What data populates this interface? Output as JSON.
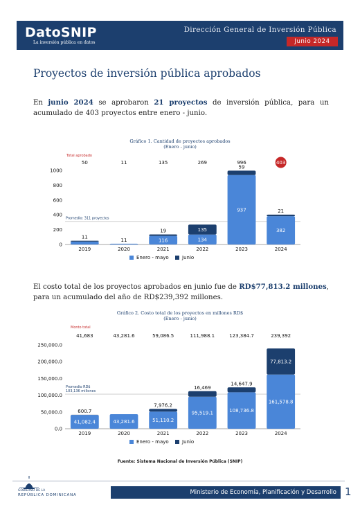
{
  "header": {
    "brand": "DatoSNIP",
    "tagline": "La inversión pública en datos",
    "org": "Dirección General de Inversión Pública",
    "month": "Junio 2024"
  },
  "title": "Proyectos de inversión pública aprobados",
  "para1": {
    "p1": "En ",
    "h1": "junio 2024",
    "p2": " se aprobaron ",
    "h2": "21 proyectos",
    "p3": " de inversión pública, para un acumulado de 403 proyectos entre enero - junio."
  },
  "para2": {
    "p1": "El costo total de los proyectos aprobados en junio fue de ",
    "h1": "RD$77,813.2 millones",
    "p2": ", para un acumulado del año de RD$239,392 millones."
  },
  "chart_data": [
    {
      "type": "bar",
      "title": "Gráfico 1. Cantidad de proyectos aprobados",
      "subtitle": "(Enero - junio)",
      "total_label": "Total aprobado",
      "categories": [
        "2019",
        "2020",
        "2021",
        "2022",
        "2023",
        "2024"
      ],
      "totals": [
        "50",
        "11",
        "135",
        "269",
        "996",
        "403"
      ],
      "series": [
        {
          "name": "Enero - mayo",
          "values": [
            39,
            11,
            116,
            134,
            937,
            382
          ],
          "labels": [
            "",
            "11",
            "116",
            "134",
            "937",
            "382"
          ],
          "color": "#4a86d8"
        },
        {
          "name": "Junio",
          "values": [
            11,
            0,
            19,
            135,
            59,
            21
          ],
          "labels": [
            "11",
            "",
            "19",
            "135",
            "59",
            "21"
          ],
          "color": "#1c3f6e"
        }
      ],
      "yticks": [
        "0",
        "200",
        "400",
        "600",
        "800",
        "1000"
      ],
      "ylim": [
        0,
        1000
      ],
      "average": 311,
      "average_label": "Promedio: 311 proyectos",
      "stacked": true,
      "legend": "bottom"
    },
    {
      "type": "bar",
      "title": "Gráfico 2. Costo total de los proyectos en millones RD$",
      "subtitle": "(Enero - junio)",
      "total_label": "Monto total",
      "categories": [
        "2019",
        "2020",
        "2021",
        "2022",
        "2023",
        "2024"
      ],
      "totals": [
        "41,683",
        "43,281.6",
        "59,086.5",
        "111,988.1",
        "123,384.7",
        "239,392"
      ],
      "series": [
        {
          "name": "Enero - mayo",
          "values": [
            41082.4,
            43281.6,
            51110.2,
            95519.1,
            108736.8,
            161578.8
          ],
          "labels": [
            "41,082.4",
            "43,281.6",
            "51,110.2",
            "95,519.1",
            "108,736.8",
            "161,578.8"
          ],
          "color": "#4a86d8"
        },
        {
          "name": "Junio",
          "values": [
            600.7,
            0,
            7976.2,
            16469,
            14647.9,
            77813.2
          ],
          "labels": [
            "600.7",
            "",
            "7,976.2",
            "16,469",
            "14,647.9",
            "77,813.2"
          ],
          "color": "#1c3f6e"
        }
      ],
      "yticks": [
        "0.0",
        "50,000.0",
        "100,000.0",
        "150,000.0",
        "200,000.0",
        "250,000.0"
      ],
      "ylim": [
        0,
        250000
      ],
      "average": 103136,
      "average_label_1": "Promedio RD$",
      "average_label_2": "103,136 millones",
      "stacked": true,
      "legend": "bottom"
    }
  ],
  "source": "Fuente: Sistema Nacional de Inversión Pública (SNIP)",
  "footer": {
    "gov_line1": "GOBIERNO DE LA",
    "gov_line2": "REPÚBLICA DOMINICANA",
    "ministry": "Ministerio de Economía, Planificación y Desarrollo",
    "page": "1"
  },
  "colors": {
    "primary": "#1c3f6e",
    "accent_bar": "#4a86d8",
    "red": "#c62828"
  }
}
